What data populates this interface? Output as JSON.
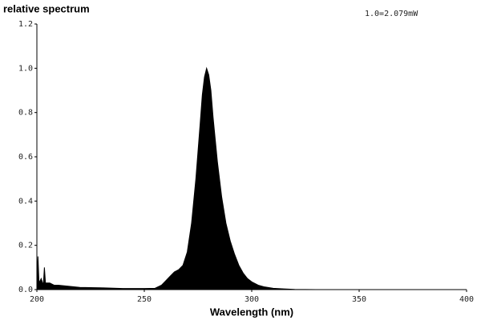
{
  "chart_data": {
    "type": "area",
    "title": "relative spectrum",
    "annotation": "1.0=2.079mW",
    "x_label": "Wavelength (nm)",
    "x": [
      200,
      200.5,
      201,
      202,
      203,
      203.5,
      204,
      206,
      208,
      210,
      215,
      220,
      230,
      240,
      250,
      255,
      258,
      260,
      262,
      264,
      266,
      268,
      270,
      272,
      274,
      276,
      277,
      278,
      279,
      280,
      281,
      282,
      284,
      286,
      288,
      290,
      292,
      294,
      296,
      298,
      300,
      303,
      306,
      310,
      315,
      320,
      330,
      350,
      400
    ],
    "values": [
      0.02,
      0.15,
      0.03,
      0.05,
      0.02,
      0.1,
      0.03,
      0.03,
      0.02,
      0.02,
      0.015,
      0.01,
      0.008,
      0.005,
      0.005,
      0.006,
      0.02,
      0.04,
      0.06,
      0.08,
      0.09,
      0.11,
      0.17,
      0.3,
      0.5,
      0.75,
      0.88,
      0.96,
      1.0,
      0.97,
      0.9,
      0.78,
      0.58,
      0.42,
      0.3,
      0.22,
      0.16,
      0.11,
      0.075,
      0.05,
      0.035,
      0.02,
      0.012,
      0.006,
      0.003,
      0.001,
      0,
      0,
      0
    ],
    "color": "#000000",
    "xlim": [
      200,
      400
    ],
    "xticks": [
      200,
      250,
      300,
      350,
      400
    ],
    "ylim": [
      0,
      1.2
    ],
    "yticks": [
      {
        "value": 0,
        "label": "0.0"
      },
      0.2,
      0.4,
      0.6,
      0.8,
      {
        "value": 1,
        "label": "1.0"
      },
      1.2
    ]
  }
}
